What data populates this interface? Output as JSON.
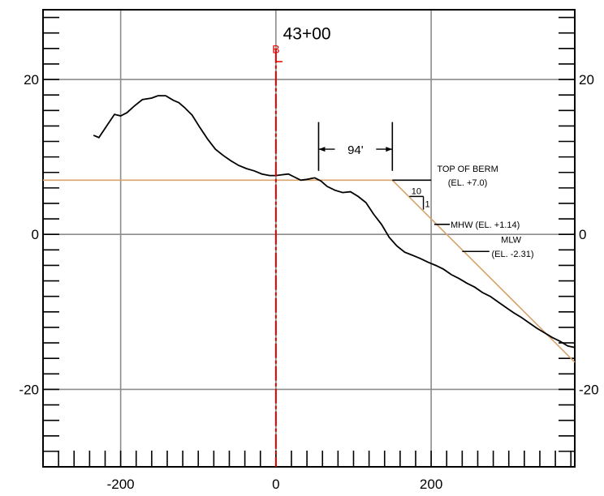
{
  "chart_data": {
    "type": "line",
    "title": "43+00",
    "xlabel": "",
    "ylabel": "",
    "xlim": [
      -300,
      385
    ],
    "ylim": [
      -30,
      29
    ],
    "x_ticks": [
      -200,
      0,
      200
    ],
    "y_ticks": [
      -20,
      0,
      20
    ],
    "grid": true,
    "baseline_label": "B",
    "baseline_x": 0,
    "series": [
      {
        "kind": "existing_profile",
        "color": "#000000",
        "points": [
          [
            -235,
            12.8
          ],
          [
            -228,
            12.5
          ],
          [
            -218,
            14.0
          ],
          [
            -208,
            15.5
          ],
          [
            -200,
            15.3
          ],
          [
            -192,
            15.7
          ],
          [
            -182,
            16.6
          ],
          [
            -172,
            17.4
          ],
          [
            -160,
            17.6
          ],
          [
            -152,
            17.9
          ],
          [
            -142,
            17.9
          ],
          [
            -132,
            17.3
          ],
          [
            -125,
            17.0
          ],
          [
            -118,
            16.4
          ],
          [
            -108,
            15.4
          ],
          [
            -98,
            13.8
          ],
          [
            -88,
            12.3
          ],
          [
            -78,
            11.0
          ],
          [
            -68,
            10.2
          ],
          [
            -58,
            9.5
          ],
          [
            -48,
            8.9
          ],
          [
            -38,
            8.5
          ],
          [
            -28,
            8.2
          ],
          [
            -18,
            7.8
          ],
          [
            -8,
            7.6
          ],
          [
            0,
            7.6
          ],
          [
            8,
            7.7
          ],
          [
            16,
            7.8
          ],
          [
            24,
            7.4
          ],
          [
            32,
            7.0
          ],
          [
            40,
            7.1
          ],
          [
            50,
            7.3
          ],
          [
            58,
            6.9
          ],
          [
            66,
            6.2
          ],
          [
            76,
            5.7
          ],
          [
            86,
            5.4
          ],
          [
            96,
            5.5
          ],
          [
            106,
            4.9
          ],
          [
            116,
            4.1
          ],
          [
            126,
            2.6
          ],
          [
            136,
            1.3
          ],
          [
            146,
            -0.4
          ],
          [
            156,
            -1.5
          ],
          [
            166,
            -2.3
          ],
          [
            176,
            -2.7
          ],
          [
            186,
            -3.1
          ],
          [
            196,
            -3.6
          ],
          [
            206,
            -4.0
          ],
          [
            216,
            -4.5
          ],
          [
            226,
            -5.2
          ],
          [
            236,
            -5.7
          ],
          [
            246,
            -6.3
          ],
          [
            256,
            -6.8
          ],
          [
            266,
            -7.5
          ],
          [
            276,
            -8.0
          ],
          [
            286,
            -8.7
          ],
          [
            296,
            -9.4
          ],
          [
            306,
            -10.1
          ],
          [
            316,
            -10.7
          ],
          [
            326,
            -11.4
          ],
          [
            336,
            -12.1
          ],
          [
            346,
            -12.7
          ],
          [
            356,
            -13.3
          ],
          [
            366,
            -13.8
          ],
          [
            376,
            -14.4
          ],
          [
            385,
            -14.6
          ]
        ]
      },
      {
        "kind": "design_berm",
        "color": "#d9a36a",
        "points": [
          [
            -300,
            7.0
          ],
          [
            150,
            7.0
          ],
          [
            385,
            -16.5
          ]
        ]
      }
    ],
    "annotations": {
      "dimension": "94'",
      "slope_run": "10",
      "slope_rise": "1",
      "top_of_berm": [
        "TOP OF BERM",
        "(EL. +7.0)"
      ],
      "mhw": "MHW (EL. +1.14)",
      "mlw": [
        "MLW",
        "(EL. -2.31)"
      ]
    },
    "colors": {
      "grid": "#8c8c8c",
      "baseline": "#e00000",
      "berm": "#d9a36a",
      "profile": "#000000"
    }
  }
}
